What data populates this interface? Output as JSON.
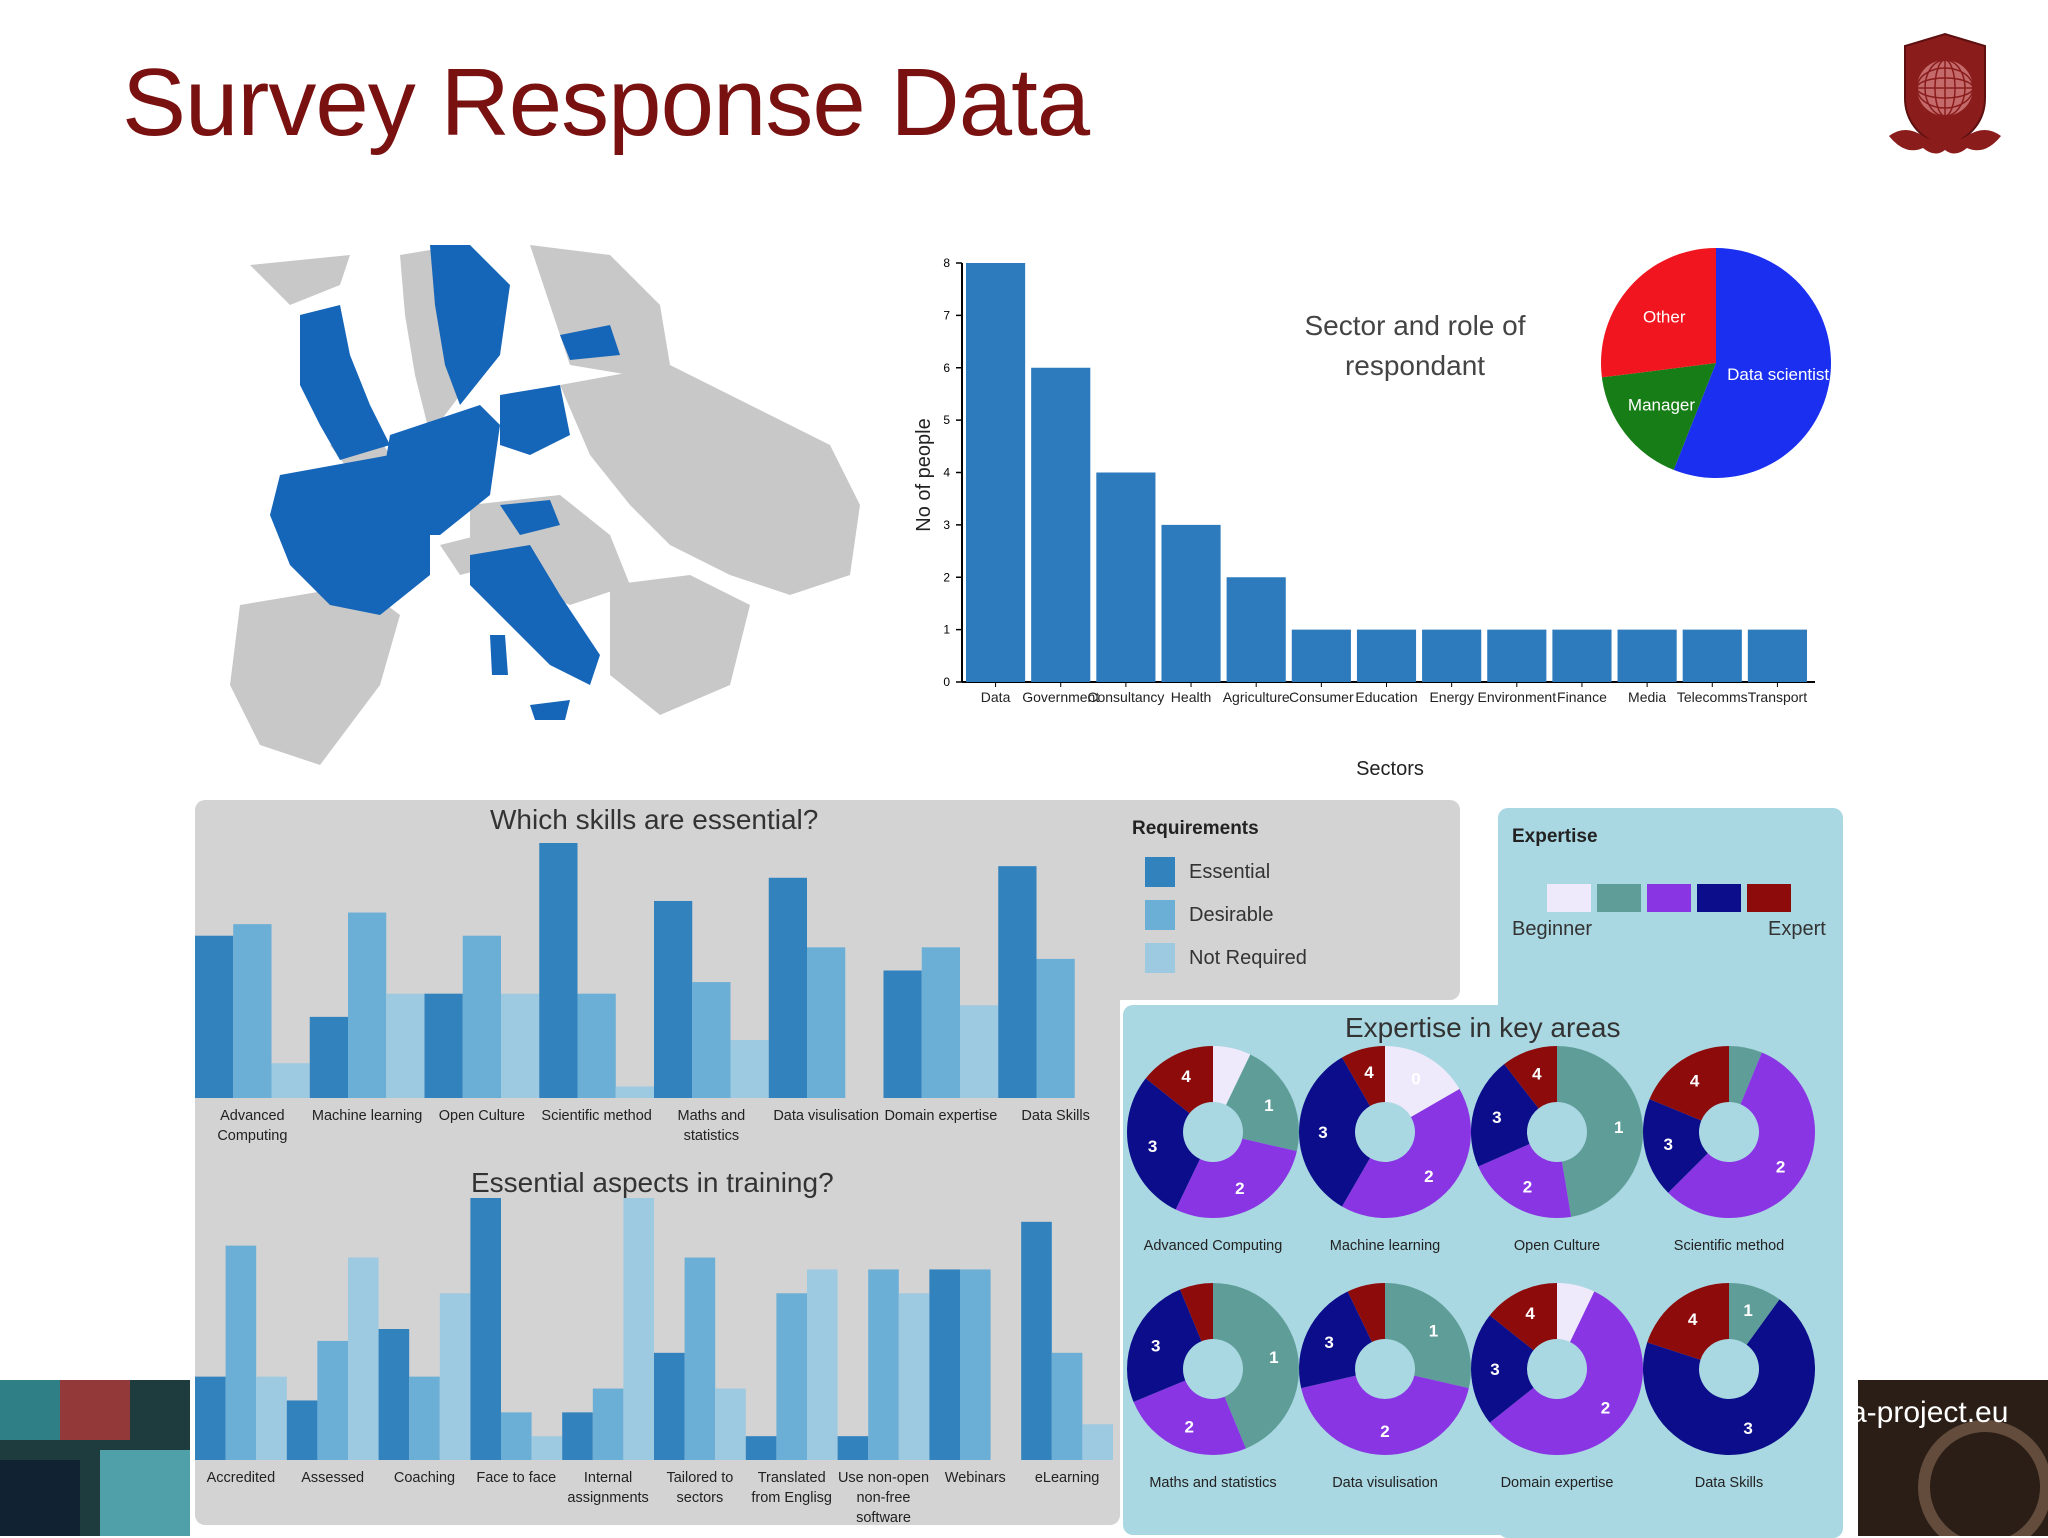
{
  "page": {
    "title": "Survey Response Data",
    "footer_url": "a-project.eu"
  },
  "colors": {
    "title": "#7a1111",
    "bar": "#2d7bbd",
    "essential": "#3182bd",
    "desirable": "#6baed6",
    "not_required": "#9ecae1",
    "map_highlight": "#1565b8",
    "map_other": "#c8c8c8",
    "pie_data_scientist": "#1a2ff0",
    "pie_other": "#f0151f",
    "pie_manager": "#177d17",
    "expertise_levels": [
      "#eeeafc",
      "#5f9e98",
      "#8a35e4",
      "#0b0d8a",
      "#8e0b0b"
    ]
  },
  "chart_data": [
    {
      "type": "bar",
      "id": "sectors",
      "xlabel": "Sectors",
      "ylabel": "No of people",
      "ylim": [
        0,
        8
      ],
      "yticks": [
        0,
        1,
        2,
        3,
        4,
        5,
        6,
        7,
        8
      ],
      "annotation": "Sector and role of respondant",
      "categories": [
        "Data",
        "Government",
        "Consultancy",
        "Health",
        "Agriculture",
        "Consumer",
        "Education",
        "Energy",
        "Environment",
        "Finance",
        "Media",
        "Telecomms",
        "Transport"
      ],
      "values": [
        8,
        6,
        4,
        3,
        2,
        1,
        1,
        1,
        1,
        1,
        1,
        1,
        1
      ]
    },
    {
      "type": "pie",
      "id": "roles",
      "slices": [
        {
          "label": "Data scientist",
          "value": 56
        },
        {
          "label": "Manager",
          "value": 17
        },
        {
          "label": "Other",
          "value": 27
        }
      ]
    },
    {
      "type": "bar",
      "id": "skills",
      "title": "Which skills are essential?",
      "legend_title": "Requirements",
      "series_names": [
        "Essential",
        "Desirable",
        "Not Required"
      ],
      "categories": [
        "Advanced Computing",
        "Machine learning",
        "Open Culture",
        "Scientific method",
        "Maths and statistics",
        "Data visulisation",
        "Domain expertise",
        "Data Skills"
      ],
      "series": [
        {
          "name": "Essential",
          "values": [
            14,
            7,
            9,
            22,
            17,
            19,
            11,
            20
          ]
        },
        {
          "name": "Desirable",
          "values": [
            15,
            16,
            14,
            9,
            10,
            13,
            13,
            12
          ]
        },
        {
          "name": "Not Required",
          "values": [
            3,
            9,
            9,
            1,
            5,
            0,
            8,
            0
          ]
        }
      ],
      "ylim": [
        0,
        22
      ]
    },
    {
      "type": "bar",
      "id": "training",
      "title": "Essential aspects in training?",
      "categories": [
        "Accredited",
        "Assessed",
        "Coaching",
        "Face to face",
        "Internal assignments",
        "Tailored to sectors",
        "Translated from Englisg",
        "Use non-open non-free software",
        "Webinars",
        "eLearning"
      ],
      "series": [
        {
          "name": "Essential",
          "values": [
            7,
            5,
            11,
            22,
            4,
            9,
            2,
            2,
            16,
            20
          ]
        },
        {
          "name": "Desirable",
          "values": [
            18,
            10,
            7,
            4,
            6,
            17,
            14,
            16,
            16,
            9
          ]
        },
        {
          "name": "Not Required",
          "values": [
            7,
            17,
            14,
            2,
            22,
            6,
            16,
            14,
            0,
            3
          ]
        }
      ],
      "ylim": [
        0,
        22
      ]
    },
    {
      "type": "pie",
      "id": "expertise",
      "title": "Expertise in key areas",
      "legend_title": "Expertise",
      "legend_low": "Beginner",
      "legend_high": "Expert",
      "levels": [
        0,
        1,
        2,
        3,
        4
      ],
      "donuts": [
        {
          "label": "Advanced Computing",
          "values": [
            1,
            3,
            4,
            4,
            2
          ],
          "labels": [
            "",
            "1",
            "2",
            "3",
            "4"
          ]
        },
        {
          "label": "Machine learning",
          "values": [
            2,
            0,
            5,
            4,
            1
          ],
          "labels": [
            "0",
            "",
            "2",
            "3",
            "4"
          ]
        },
        {
          "label": "Open Culture",
          "values": [
            0,
            9,
            4,
            4,
            2
          ],
          "labels": [
            "",
            "1",
            "2",
            "3",
            "4"
          ]
        },
        {
          "label": "Scientific method",
          "values": [
            0,
            1,
            9,
            3,
            3
          ],
          "labels": [
            "",
            "",
            "2",
            "3",
            "4"
          ]
        },
        {
          "label": "Maths and statistics",
          "values": [
            0,
            7,
            4,
            4,
            1
          ],
          "labels": [
            "",
            "1",
            "2",
            "3",
            ""
          ]
        },
        {
          "label": "Data visulisation",
          "values": [
            0,
            4,
            6,
            3,
            1
          ],
          "labels": [
            "",
            "1",
            "2",
            "3",
            ""
          ]
        },
        {
          "label": "Domain expertise",
          "values": [
            1,
            0,
            8,
            3,
            2
          ],
          "labels": [
            "",
            "",
            "2",
            "3",
            "4"
          ]
        },
        {
          "label": "Data Skills",
          "values": [
            0,
            1,
            0,
            7,
            2
          ],
          "labels": [
            "",
            "1",
            "",
            "3",
            "4"
          ]
        }
      ]
    }
  ]
}
